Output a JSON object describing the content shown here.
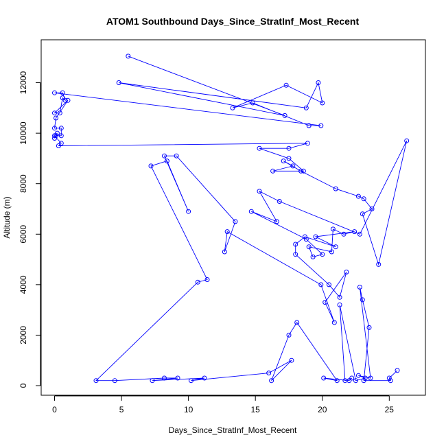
{
  "chart_data": {
    "type": "line",
    "title": "ATOM1 Southbound Days_Since_StratInf_Most_Recent",
    "xlabel": "Days_Since_StratInf_Most_Recent",
    "ylabel": "Altitude (m)",
    "xlim": [
      -1.0,
      27.7
    ],
    "ylim": [
      -380,
      13700
    ],
    "x_ticks": [
      0,
      5,
      10,
      15,
      20,
      25
    ],
    "y_ticks": [
      0,
      2000,
      4000,
      6000,
      8000,
      10000,
      12000
    ],
    "grid": false,
    "legend": "none",
    "line_color": "#0000ff",
    "marker": "open-circle",
    "series": [
      {
        "x": [
          5.5,
          17.2,
          4.8,
          18.8,
          19.7,
          20.0,
          17.3,
          13.3,
          14.8,
          19.0,
          19.9,
          0.0,
          0.6,
          0.8,
          0.6,
          0.4,
          0.0,
          1.0,
          0.1,
          0.0,
          0.5,
          0.5,
          0.1,
          0.0,
          0.2,
          0.0,
          0.5,
          0.3,
          18.9,
          17.5,
          15.3,
          17.5,
          18.6,
          16.3,
          17.8,
          17.1,
          18.4,
          21.0,
          22.7,
          23.1,
          23.7,
          23.0,
          24.2,
          26.3,
          22.8,
          16.8,
          15.3,
          16.6,
          14.7,
          18.8,
          20.0,
          19.3,
          19.0,
          20.7,
          20.8,
          21.6,
          22.4,
          19.5,
          21.0,
          18.7,
          18.0,
          18.0,
          20.5,
          21.3,
          21.8,
          20.2,
          20.9,
          19.9,
          12.9,
          12.7,
          13.5,
          9.1,
          8.2,
          10.0,
          8.4,
          7.2,
          11.4,
          10.7,
          3.1,
          4.5,
          8.2,
          9.2,
          7.3,
          11.2,
          10.2,
          16.0,
          17.7,
          16.2,
          17.5,
          18.1,
          21.1,
          20.1,
          22.0,
          22.2,
          21.7,
          21.3,
          22.5,
          23.2,
          22.7,
          23.6,
          22.8,
          23.0,
          23.5,
          23.1,
          25.1,
          25.0,
          25.6
        ],
        "y": [
          13050,
          10700,
          12000,
          11000,
          12000,
          11200,
          11900,
          11000,
          11200,
          10300,
          10300,
          11600,
          11600,
          11300,
          11400,
          10800,
          10800,
          11300,
          10600,
          10200,
          10200,
          9900,
          9900,
          9800,
          10000,
          9900,
          9600,
          9500,
          9600,
          9400,
          9400,
          9000,
          8500,
          8500,
          8700,
          8900,
          8500,
          7800,
          7500,
          7400,
          7000,
          6800,
          4800,
          9700,
          6000,
          7300,
          7700,
          6500,
          6900,
          5800,
          5200,
          5100,
          5500,
          5300,
          6200,
          6000,
          6100,
          5900,
          5500,
          5900,
          5600,
          5200,
          4000,
          3500,
          4500,
          3300,
          2500,
          4000,
          6100,
          5300,
          6500,
          9100,
          9100,
          6900,
          8900,
          8700,
          4200,
          4100,
          200,
          200,
          300,
          300,
          200,
          300,
          200,
          500,
          1000,
          200,
          2000,
          2500,
          200,
          300,
          200,
          300,
          200,
          3200,
          200,
          300,
          400,
          300,
          3900,
          3400,
          2300,
          200,
          200,
          300,
          600
        ]
      }
    ]
  }
}
